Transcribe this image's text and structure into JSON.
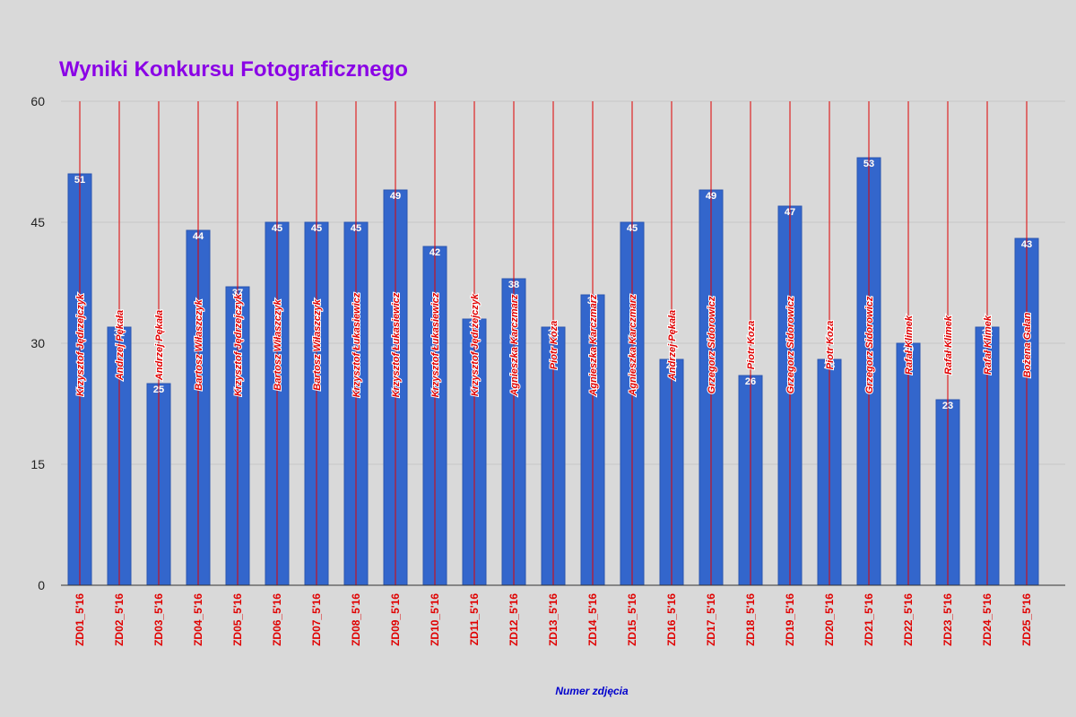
{
  "colors": {
    "background": "#d9d9d9",
    "bar": "#3366cc",
    "bar_border": "#2a55b0",
    "title": "#8a00e6",
    "x_tick": "#e00000",
    "x_axis_label": "#0000cc",
    "author_line": "#e00000",
    "gridline": "#c8c8c8"
  },
  "chart_data": {
    "type": "bar",
    "title": "Wyniki Konkursu Fotograficznego",
    "xlabel": "Numer zdjęcia",
    "ylabel": "",
    "ylim": [
      0,
      60
    ],
    "yticks": [
      "0",
      "15",
      "30",
      "45",
      "60"
    ],
    "grid": true,
    "legend": "none",
    "categories": [
      "ZD01_5'16",
      "ZD02_5'16",
      "ZD03_5'16",
      "ZD04_5'16",
      "ZD05_5'16",
      "ZD06_5'16",
      "ZD07_5'16",
      "ZD08_5'16",
      "ZD09_5'16",
      "ZD10_5'16",
      "ZD11_5'16",
      "ZD12_5'16",
      "ZD13_5'16",
      "ZD14_5'16",
      "ZD15_5'16",
      "ZD16_5'16",
      "ZD17_5'16",
      "ZD18_5'16",
      "ZD19_5'16",
      "ZD20_5'16",
      "ZD21_5'16",
      "ZD22_5'16",
      "ZD23_5'16",
      "ZD24_5'16",
      "ZD25_5'16"
    ],
    "values": [
      51,
      32,
      25,
      44,
      37,
      45,
      45,
      45,
      49,
      42,
      33,
      38,
      32,
      36,
      45,
      28,
      49,
      26,
      47,
      28,
      53,
      30,
      23,
      32,
      43
    ],
    "authors": [
      "Krzysztof Jędrzejczyk",
      "Andrzej Pękała",
      "Andrzej Pękała",
      "Bartosz Wiłaszczyk",
      "Krzysztof Jędrzejczyk",
      "Bartosz Wiłaszczyk",
      "Bartosz Wiłaszczyk",
      "Krzysztof Łukasiewicz",
      "Krzysztof Łukasiewicz",
      "Krzysztof Łukasiewicz",
      "Krzysztof Jędrzejczyk",
      "Agnieszka Karczmarz",
      "Piotr Koza",
      "Agnieszka Karczmarz",
      "Agnieszka Karczmarz",
      "Andrzej Pękała",
      "Grzegorz Sidorowicz",
      "Piotr Koza",
      "Grzegorz Sidorowicz",
      "Piotr Koza",
      "Grzegorz Sidorowicz",
      "Rafał Klimek",
      "Rafał Klimek",
      "Rafał Klimek",
      "Bożena Gałan"
    ]
  }
}
